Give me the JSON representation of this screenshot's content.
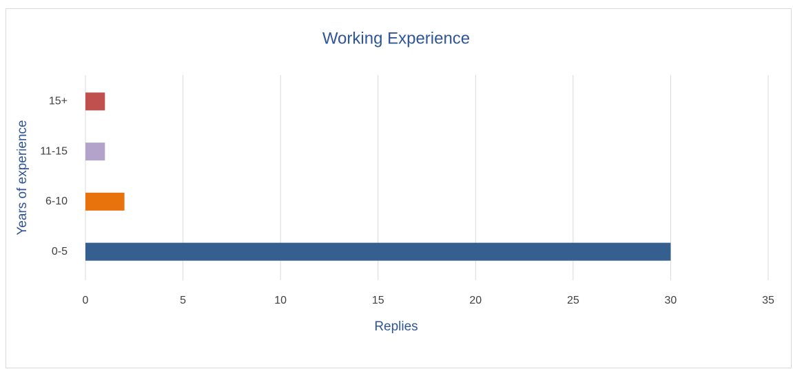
{
  "chart_data": {
    "type": "bar",
    "orientation": "horizontal",
    "title": "Working Experience",
    "x_label": "Replies",
    "y_label": "Years of experience",
    "categories": [
      "0-5",
      "6-10",
      "11-15",
      "15+"
    ],
    "values": [
      30,
      2,
      1,
      1
    ],
    "colors": [
      "#355f8f",
      "#e8720c",
      "#b3a2c9",
      "#c0504d"
    ],
    "xlim": [
      0,
      35
    ],
    "xticks": [
      0,
      5,
      10,
      15,
      20,
      25,
      30,
      35
    ],
    "grid": true
  }
}
